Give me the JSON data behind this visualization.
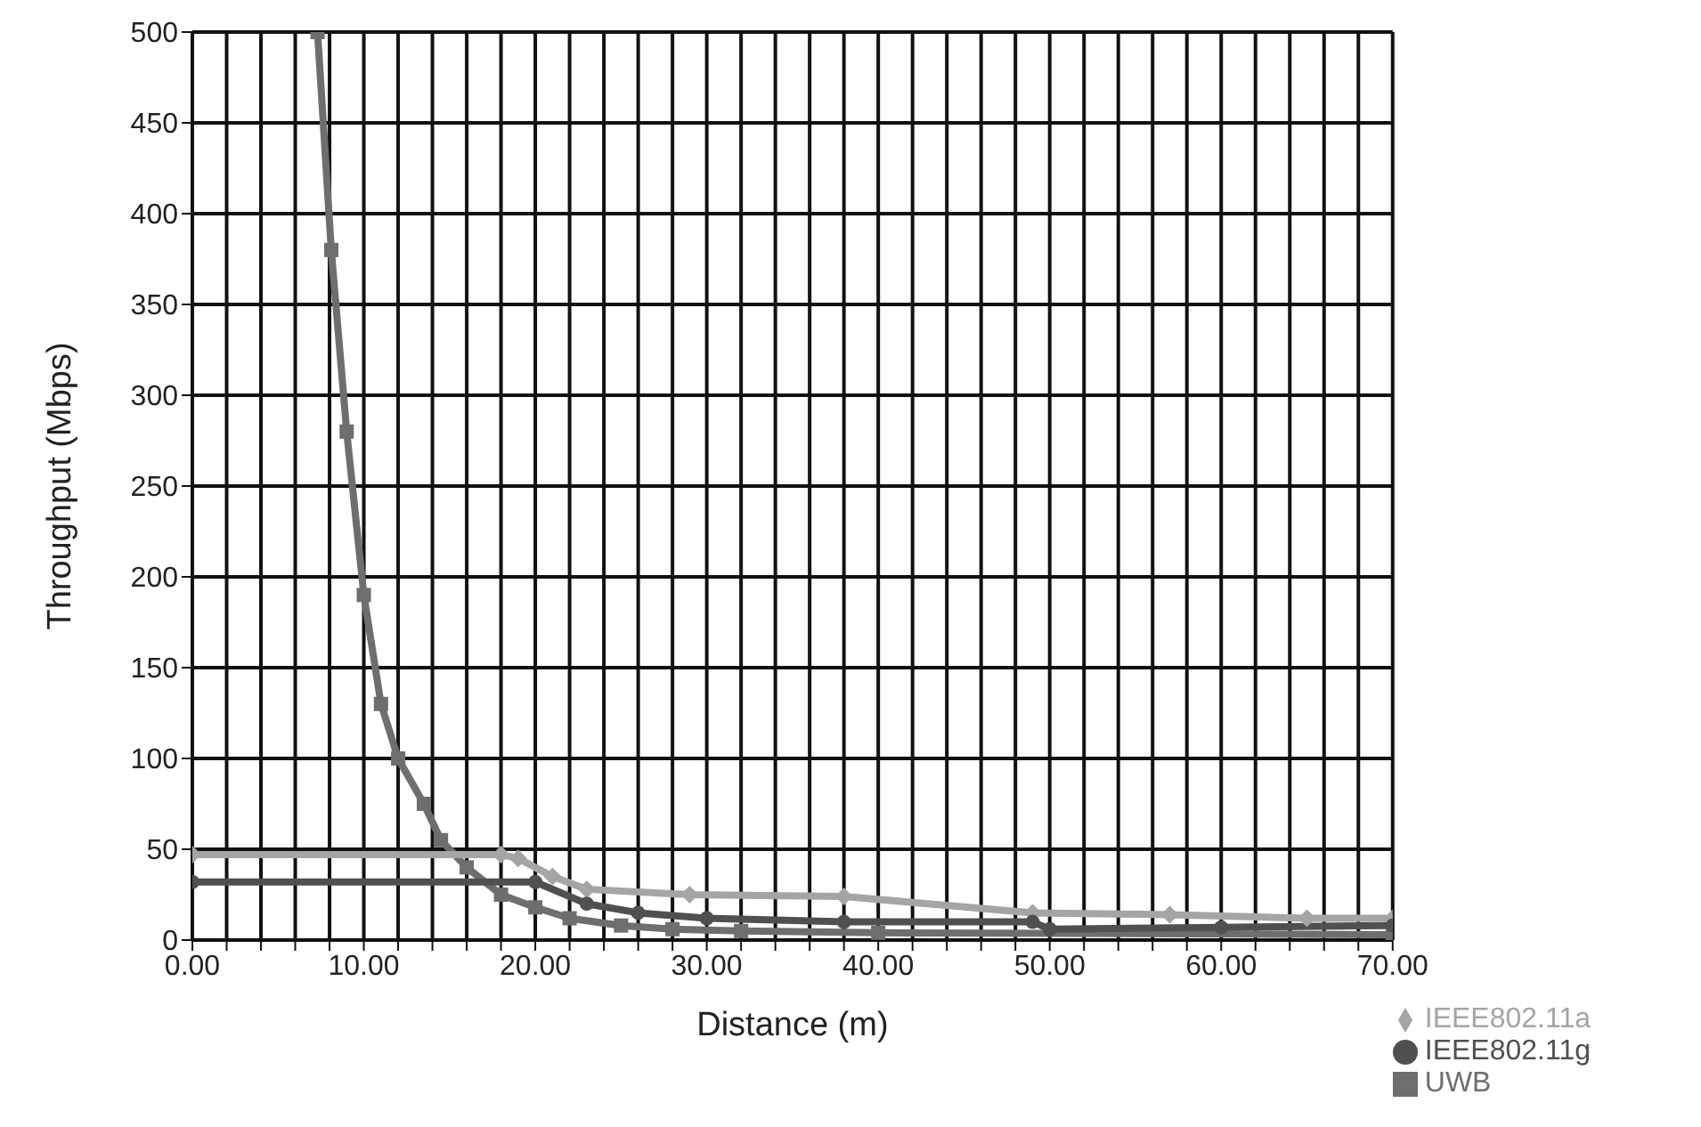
{
  "chart_data": {
    "type": "line",
    "xlabel": "Distance (m)",
    "ylabel": "Throughput (Mbps)",
    "xlim": [
      0,
      70
    ],
    "ylim": [
      0,
      500
    ],
    "xticks": [
      {
        "value": 0,
        "label": "0.00"
      },
      {
        "value": 2,
        "label": null
      },
      {
        "value": 4,
        "label": null
      },
      {
        "value": 6,
        "label": null
      },
      {
        "value": 8,
        "label": null
      },
      {
        "value": 10,
        "label": "10.00"
      },
      {
        "value": 12,
        "label": null
      },
      {
        "value": 14,
        "label": null
      },
      {
        "value": 16,
        "label": null
      },
      {
        "value": 18,
        "label": null
      },
      {
        "value": 20,
        "label": "20.00"
      },
      {
        "value": 22,
        "label": null
      },
      {
        "value": 24,
        "label": null
      },
      {
        "value": 26,
        "label": null
      },
      {
        "value": 28,
        "label": null
      },
      {
        "value": 30,
        "label": "30.00"
      },
      {
        "value": 32,
        "label": null
      },
      {
        "value": 34,
        "label": null
      },
      {
        "value": 36,
        "label": null
      },
      {
        "value": 38,
        "label": null
      },
      {
        "value": 40,
        "label": "40.00"
      },
      {
        "value": 42,
        "label": null
      },
      {
        "value": 44,
        "label": null
      },
      {
        "value": 46,
        "label": null
      },
      {
        "value": 48,
        "label": null
      },
      {
        "value": 50,
        "label": "50.00"
      },
      {
        "value": 52,
        "label": null
      },
      {
        "value": 54,
        "label": null
      },
      {
        "value": 56,
        "label": null
      },
      {
        "value": 58,
        "label": null
      },
      {
        "value": 60,
        "label": "60.00"
      },
      {
        "value": 62,
        "label": null
      },
      {
        "value": 64,
        "label": null
      },
      {
        "value": 66,
        "label": null
      },
      {
        "value": 68,
        "label": null
      },
      {
        "value": 70,
        "label": "70.00"
      }
    ],
    "yticks": [
      0,
      50,
      100,
      150,
      200,
      250,
      300,
      350,
      400,
      450,
      500
    ],
    "grid": true,
    "legend": "bottom right",
    "series": [
      {
        "name": "UWB",
        "color": "#6e6e6e",
        "marker": "square",
        "x": [
          7.3,
          8.1,
          9,
          10,
          11,
          12,
          13.5,
          14.5,
          16,
          18,
          20,
          22,
          25,
          28,
          32,
          40,
          70
        ],
        "values": [
          500,
          380,
          280,
          190,
          130,
          100,
          75,
          55,
          40,
          25,
          18,
          12,
          8,
          6,
          5,
          4,
          3
        ]
      },
      {
        "name": "IEEE802.11a",
        "color": "#a5a5a5",
        "marker": "diamond",
        "x": [
          0,
          18,
          19,
          21,
          23,
          29,
          38,
          49,
          57,
          65,
          70
        ],
        "values": [
          47,
          47,
          45,
          35,
          28,
          25,
          24,
          15,
          14,
          12,
          12
        ]
      },
      {
        "name": "IEEE802.11g",
        "color": "#505050",
        "marker": "circle",
        "x": [
          0,
          20,
          23,
          26,
          30,
          38,
          49,
          50,
          60,
          70
        ],
        "values": [
          32,
          32,
          20,
          15,
          12,
          10,
          10,
          6,
          7,
          8
        ]
      }
    ]
  }
}
